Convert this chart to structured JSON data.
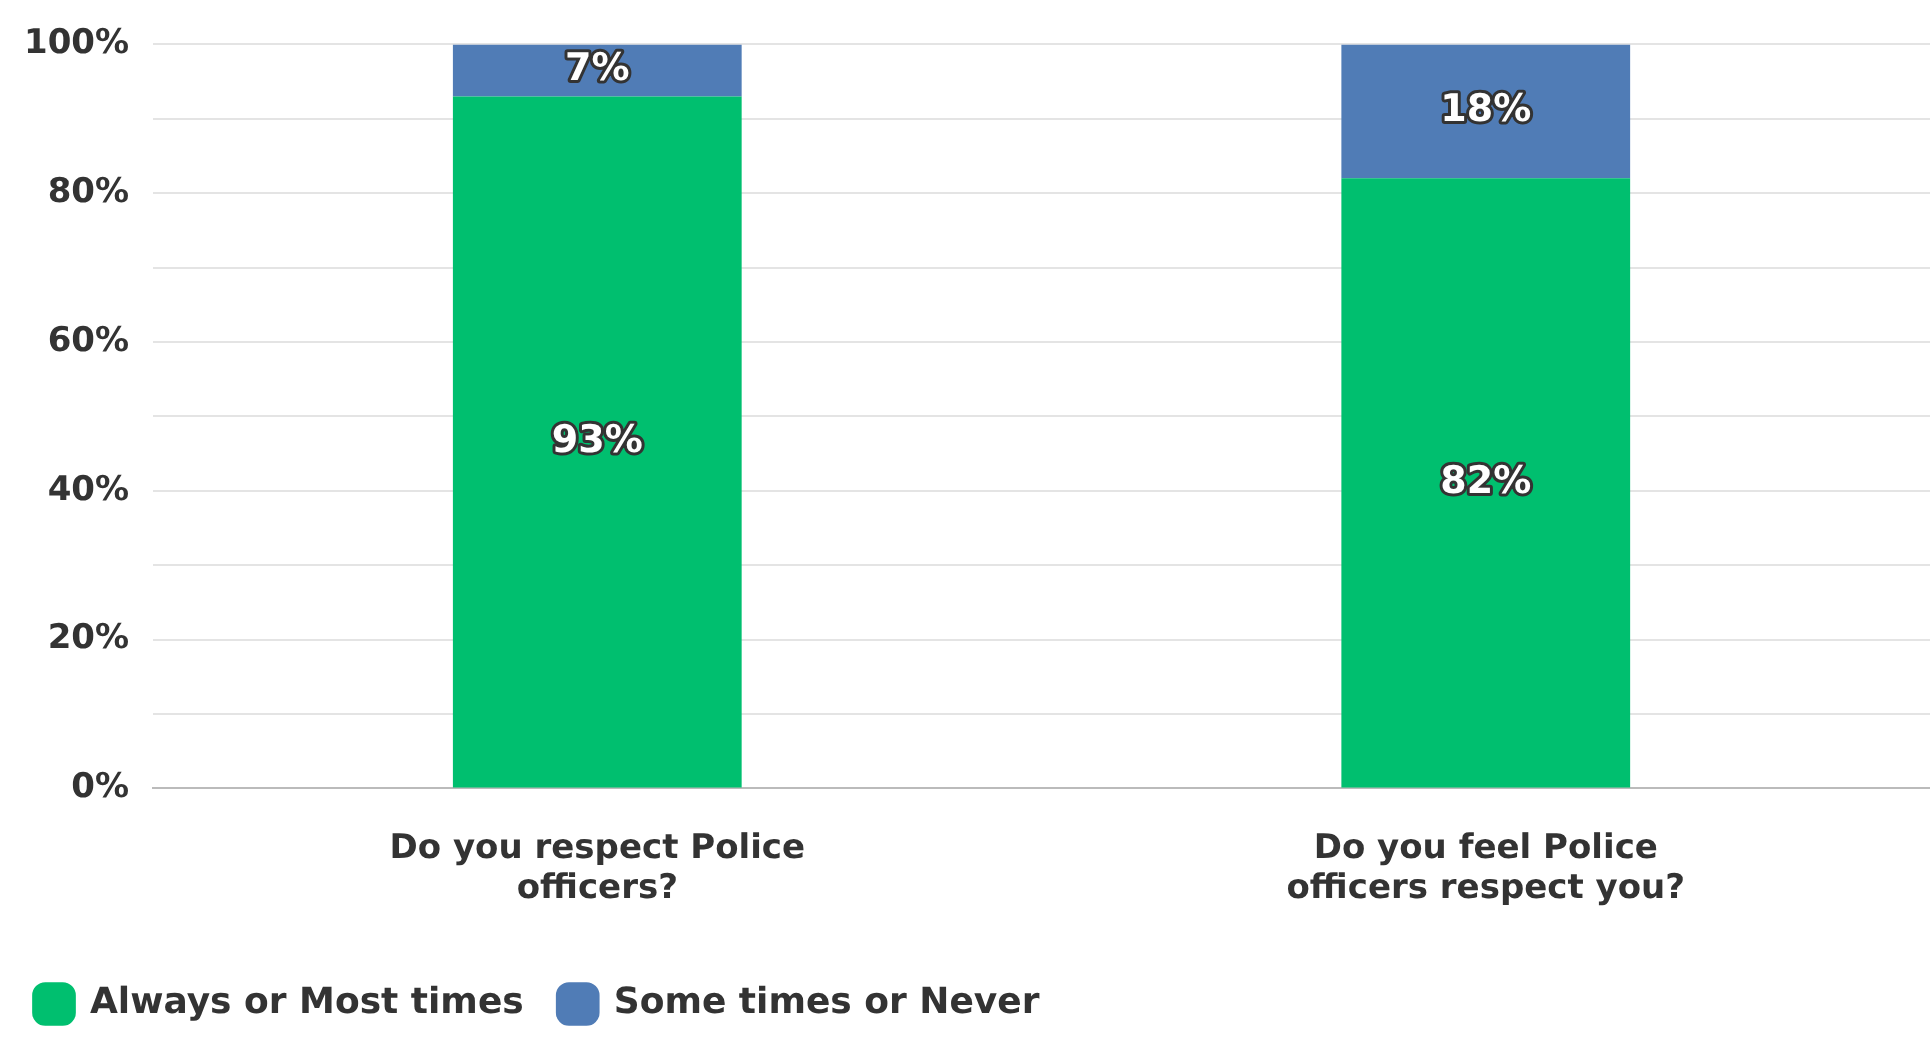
{
  "chart_data": {
    "type": "bar",
    "stacked": true,
    "categories": [
      "Do you respect Police officers?",
      "Do you feel Police officers respect you?"
    ],
    "series": [
      {
        "name": "Always or Most times",
        "color": "#00bf6f",
        "values": [
          93,
          82
        ],
        "value_labels": [
          "93%",
          "82%"
        ]
      },
      {
        "name": "Some times or Never",
        "color": "#507cb6",
        "values": [
          7,
          18
        ],
        "value_labels": [
          "7%",
          "18%"
        ]
      }
    ],
    "ylim": [
      0,
      100
    ],
    "yticks": [
      {
        "value": 0,
        "label": "0%"
      },
      {
        "value": 10,
        "label": null
      },
      {
        "value": 20,
        "label": "20%"
      },
      {
        "value": 30,
        "label": null
      },
      {
        "value": 40,
        "label": "40%"
      },
      {
        "value": 50,
        "label": null
      },
      {
        "value": 60,
        "label": "60%"
      },
      {
        "value": 70,
        "label": null
      },
      {
        "value": 80,
        "label": "80%"
      },
      {
        "value": 90,
        "label": null
      },
      {
        "value": 100,
        "label": "100%"
      }
    ],
    "grid": "y",
    "legend": "bottom left"
  }
}
